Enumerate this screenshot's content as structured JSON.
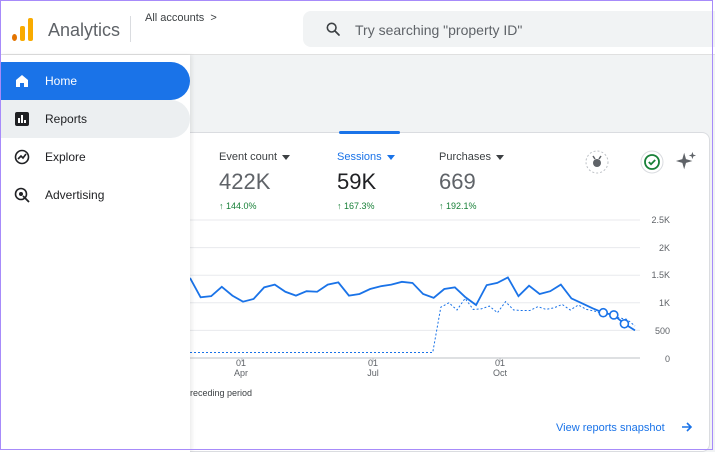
{
  "app": {
    "title": "Analytics",
    "accounts_label": "All accounts",
    "accounts_chevron": ">"
  },
  "search": {
    "placeholder": "Try searching \"property ID\""
  },
  "sidebar": {
    "items": [
      {
        "label": "Home",
        "icon": "home-icon",
        "active": true
      },
      {
        "label": "Reports",
        "icon": "reports-icon",
        "active": false
      },
      {
        "label": "Explore",
        "icon": "explore-icon",
        "active": false
      },
      {
        "label": "Advertising",
        "icon": "advertising-icon",
        "active": false
      }
    ]
  },
  "metrics": [
    {
      "label": "Event count",
      "value": "422K",
      "change": "↑ 144.0%"
    },
    {
      "label": "Sessions",
      "value": "59K",
      "change": "↑ 167.3%"
    },
    {
      "label": "Purchases",
      "value": "669",
      "change": "↑ 192.1%"
    }
  ],
  "legend": {
    "text": "receding period"
  },
  "footer": {
    "snapshot_label": "View reports snapshot"
  },
  "colors": {
    "accent": "#1a73e8",
    "positive": "#188038",
    "logo_orange": "#f9ab00",
    "logo_dark_orange": "#e37400"
  },
  "chart_data": {
    "type": "line",
    "y_ticks": [
      "2.5K",
      "2K",
      "1.5K",
      "1K",
      "500",
      "0"
    ],
    "ylim": [
      0,
      2500
    ],
    "x_ticks": [
      {
        "day": "01",
        "month": "Apr"
      },
      {
        "day": "01",
        "month": "Jul"
      },
      {
        "day": "01",
        "month": "Oct"
      }
    ],
    "series": [
      {
        "values": [
          1450,
          1100,
          1120,
          1290,
          1130,
          1020,
          1070,
          1280,
          1330,
          1200,
          1130,
          1210,
          1200,
          1330,
          1370,
          1130,
          1160,
          1250,
          1300,
          1330,
          1380,
          1360,
          1160,
          1090,
          1250,
          1280,
          1100,
          960,
          1320,
          1360,
          1460,
          1120,
          1310,
          1160,
          1210,
          1330,
          1080,
          990,
          900,
          820,
          780,
          620,
          500
        ]
      },
      {
        "values": [
          100,
          100,
          100,
          100,
          100,
          100,
          100,
          100,
          100,
          100,
          100,
          100,
          100,
          100,
          100,
          100,
          100,
          100,
          100,
          100,
          100,
          100,
          100,
          100,
          100,
          100,
          100,
          100,
          100,
          100,
          100,
          920,
          1000,
          870,
          1080,
          880,
          890,
          940,
          820,
          1020,
          870,
          860,
          860,
          930,
          880,
          910,
          970,
          870,
          960,
          880,
          850,
          800,
          770,
          730,
          700,
          580
        ]
      }
    ]
  }
}
